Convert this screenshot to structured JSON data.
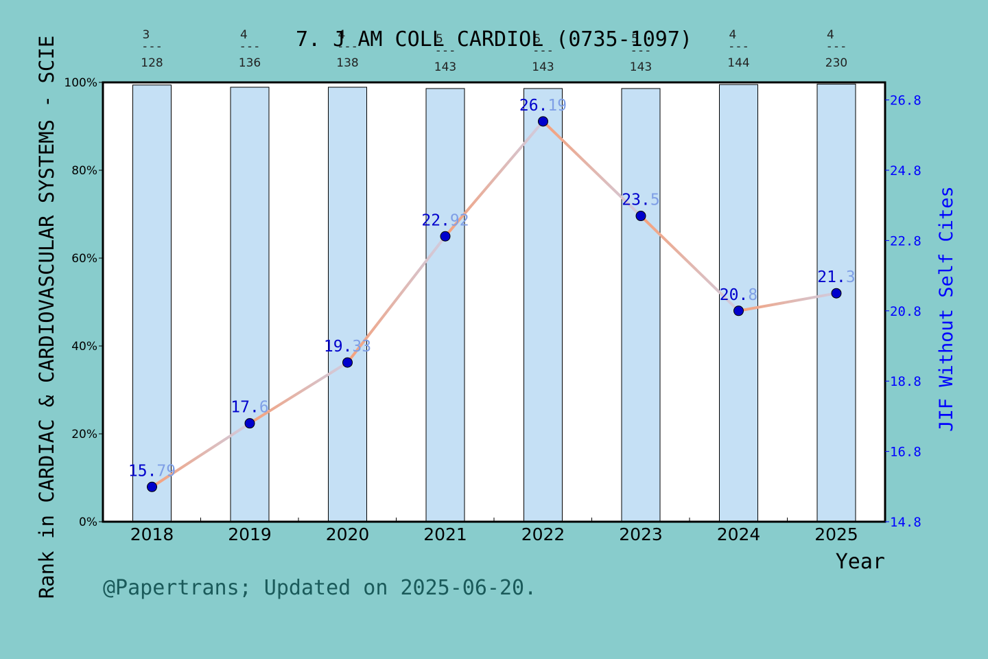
{
  "chart_data": {
    "type": "bar+line",
    "title": "7. J AM COLL CARDIOL (0735-1097)",
    "xlabel": "Year",
    "ylabel_left": "Rank in CARDIAC & CARDIOVASCULAR SYSTEMS - SCIE",
    "ylabel_right": "JIF Without Self Cites",
    "footer": "@Papertrans; Updated on 2025-06-20.",
    "categories": [
      "2018",
      "2019",
      "2020",
      "2021",
      "2022",
      "2023",
      "2024",
      "2025"
    ],
    "ranks": [
      {
        "rank": "3",
        "total": "128",
        "sep": "---"
      },
      {
        "rank": "4",
        "total": "136",
        "sep": "---"
      },
      {
        "rank": "4",
        "total": "138",
        "sep": "---"
      },
      {
        "rank": "5",
        "total": "143",
        "sep": "---"
      },
      {
        "rank": "5",
        "total": "143",
        "sep": "---"
      },
      {
        "rank": "5",
        "total": "143",
        "sep": "---"
      },
      {
        "rank": "4",
        "total": "144",
        "sep": "---"
      },
      {
        "rank": "4",
        "total": "230",
        "sep": "---"
      }
    ],
    "bar_percentile": [
      99.4,
      98.9,
      98.9,
      98.6,
      98.6,
      98.6,
      99.5,
      99.6
    ],
    "jif_values": [
      15.79,
      17.6,
      19.33,
      22.92,
      26.19,
      23.5,
      20.8,
      21.3
    ],
    "jif_labels": [
      {
        "a": "15.",
        "b": "79"
      },
      {
        "a": "17.",
        "b": "6"
      },
      {
        "a": "19.",
        "b": "33"
      },
      {
        "a": "22.",
        "b": "92"
      },
      {
        "a": "26.",
        "b": "19"
      },
      {
        "a": "23.",
        "b": "5"
      },
      {
        "a": "20.",
        "b": "8"
      },
      {
        "a": "21.",
        "b": "3"
      }
    ],
    "y_left_ticks": [
      "0%",
      "20%",
      "40%",
      "60%",
      "80%",
      "100%"
    ],
    "y_left_range": [
      0,
      100
    ],
    "y_right_ticks": [
      "14.8",
      "16.8",
      "18.8",
      "20.8",
      "22.8",
      "24.8",
      "26.8"
    ],
    "y_right_range": [
      14.8,
      27.3
    ],
    "colors": {
      "background": "#88cccc",
      "plot_bg": "#ffffff",
      "bar_fill": "#c5e0f5",
      "line": "#f0a080",
      "marker": "#0000cc",
      "right_axis": "#0000ff",
      "footer": "#1a5a5a"
    }
  }
}
